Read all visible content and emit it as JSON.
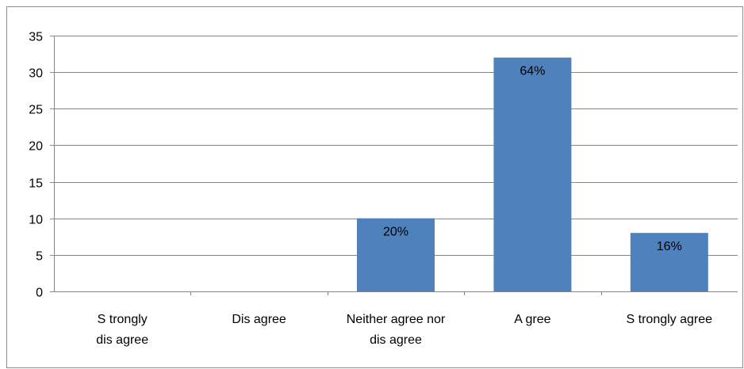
{
  "chart_data": {
    "type": "bar",
    "categories": [
      [
        "S trongly",
        "dis agree"
      ],
      [
        "Dis agree"
      ],
      [
        "Neither agree nor",
        "dis agree"
      ],
      [
        "A gree"
      ],
      [
        "S trongly agree"
      ]
    ],
    "values": [
      0,
      0,
      10,
      32,
      8
    ],
    "data_labels": [
      "",
      "",
      "20%",
      "64%",
      "16%"
    ],
    "title": "",
    "xlabel": "",
    "ylabel": "",
    "ylim": [
      0,
      35
    ],
    "yticks": [
      0,
      5,
      10,
      15,
      20,
      25,
      30,
      35
    ],
    "grid": true,
    "legend": "none",
    "colors": {
      "bar": "#4f81bd",
      "grid": "#868686"
    }
  }
}
